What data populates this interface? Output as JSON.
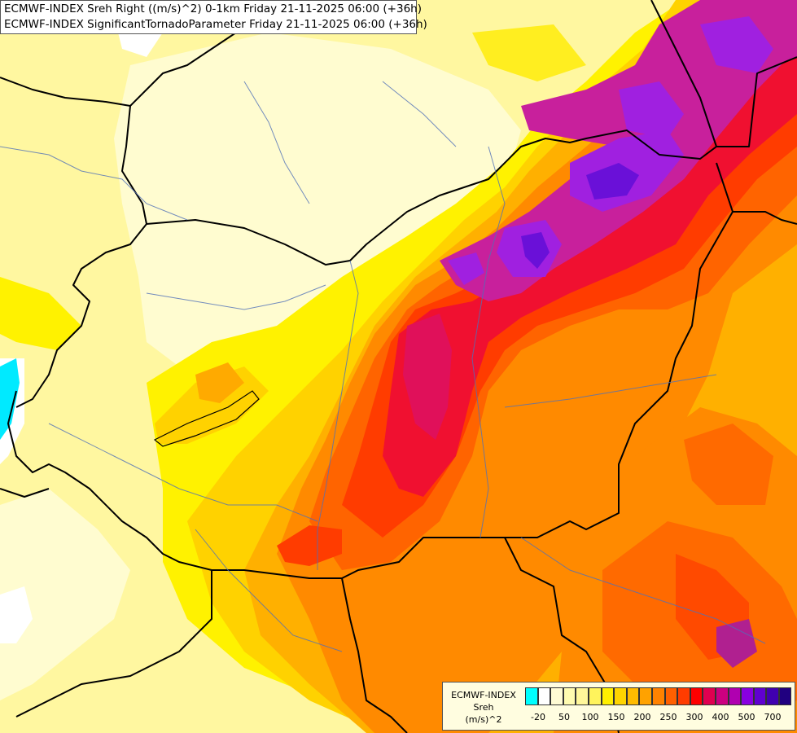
{
  "title_lines": [
    "ECMWF-INDEX Sreh Right ((m/s)^2) 0-1km Friday 21-11-2025 06:00 (+36h)",
    "ECMWF-INDEX SignificantTornadoParameter Friday 21-11-2025 06:00 (+36h)"
  ],
  "legend": {
    "model": "ECMWF-INDEX",
    "variable": "Sreh",
    "unit": "(m/s)^2",
    "tick_labels": [
      "-20",
      "50",
      "100",
      "150",
      "200",
      "250",
      "300",
      "400",
      "500",
      "700"
    ],
    "colors": [
      "#00ffff",
      "#ffffff",
      "#fffbd4",
      "#fffbb0",
      "#fff79a",
      "#fff35c",
      "#ffef00",
      "#ffd400",
      "#ffbb00",
      "#ffa200",
      "#ff8200",
      "#ff6000",
      "#ff3c00",
      "#ff0000",
      "#e00050",
      "#cc0080",
      "#b000b0",
      "#8800e0",
      "#6000d0",
      "#4000b0",
      "#200080"
    ]
  },
  "map": {
    "palette": {
      "cyan": "#00ffff",
      "white": "#ffffff",
      "pale": "#fffdd8",
      "lightyellow": "#fffbb0",
      "yellow": "#fff200",
      "gold": "#ffd500",
      "amber": "#ffb000",
      "orange": "#ff8a00",
      "darkorange": "#ff6400",
      "redorange": "#ff3c00",
      "red": "#f01030",
      "crimson": "#e0105a",
      "magenta": "#c020a0",
      "purple": "#a020e0",
      "violet": "#7a20e8",
      "indigo": "#5a10d0",
      "border": "#000000",
      "river": "#4a6ab0"
    }
  }
}
